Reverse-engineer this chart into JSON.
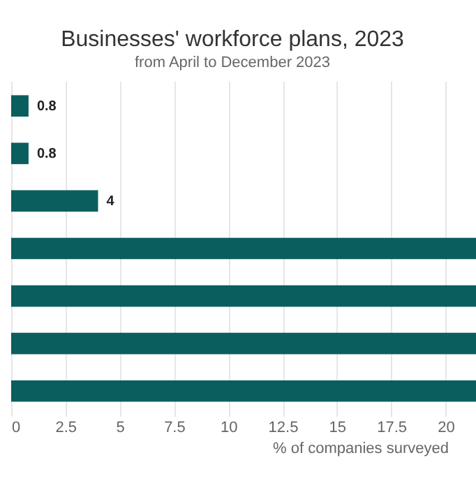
{
  "chart_data": {
    "type": "bar",
    "orientation": "horizontal",
    "title": "Businesses' workforce plans, 2023",
    "subtitle": "from April to December 2023",
    "xlabel": "% of companies surveyed",
    "categories": [
      null,
      null,
      null,
      null,
      null,
      null,
      null
    ],
    "values": [
      0.8,
      0.8,
      4,
      21.4,
      21.4,
      21.4,
      21.4
    ],
    "value_labels": [
      "0.8",
      "0.8",
      "4",
      null,
      null,
      null,
      null
    ],
    "color": "#0b5e5e",
    "xlim": [
      0,
      21.4
    ],
    "xticks": [
      0,
      2.5,
      5,
      7.5,
      10,
      12.5,
      15,
      17.5,
      20
    ],
    "grid": "x"
  }
}
